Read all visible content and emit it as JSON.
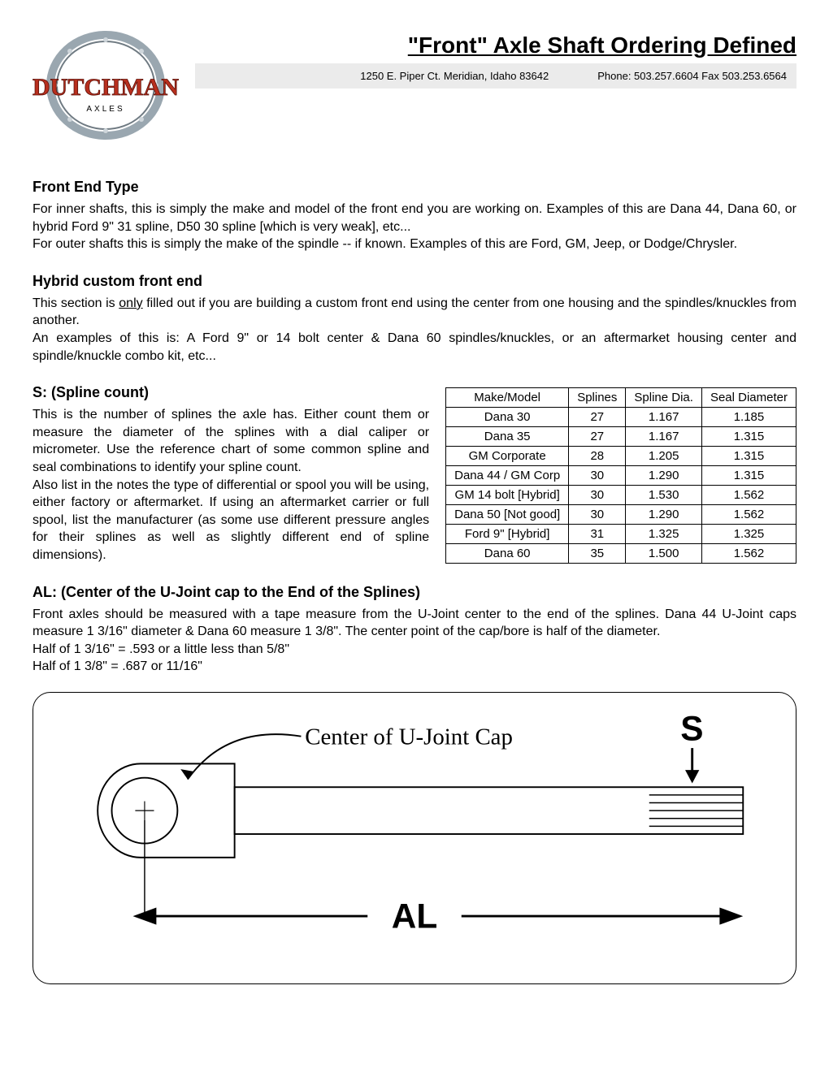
{
  "header": {
    "title": "\"Front\" Axle Shaft Ordering Defined",
    "address": "1250 E. Piper Ct.  Meridian, Idaho  83642",
    "contact": "Phone: 503.257.6604    Fax 503.253.6564",
    "logo": {
      "brand_top": "DUTCHMAN",
      "brand_sub": "AXLES",
      "ring_color": "#9aa7b0",
      "text_color": "#b82f1e"
    }
  },
  "sections": {
    "frontEnd": {
      "heading": "Front End Type",
      "p1": "For inner shafts, this is simply the make and model of the front end you are working on. Examples of this are Dana 44, Dana 60, or hybrid Ford 9\" 31 spline, D50 30 spline [which is very weak], etc...",
      "p2": "For outer shafts this is simply the make of the spindle -- if known. Examples of this are Ford, GM, Jeep, or Dodge/Chrysler."
    },
    "hybrid": {
      "heading": "Hybrid custom front end",
      "p1a": "This section is ",
      "p1u": "only",
      "p1b": " filled out if you are building a custom front end using the center from one housing and the spindles/knuckles from another.",
      "p2": "An examples of this is: A Ford 9\" or 14 bolt center & Dana 60 spindles/knuckles, or an aftermarket housing center and spindle/knuckle combo kit, etc..."
    },
    "spline": {
      "heading": "S:  (Spline count)",
      "p1": "This is the number of splines the axle has. Either count them or measure the diameter of the splines with a dial caliper or micrometer. Use the reference chart of some common spline and seal combinations to identify your spline count.",
      "p2": "Also list in the notes the type of differential or spool you will be using, either factory or aftermarket. If using an aftermarket carrier or full spool, list the manufacturer (as some use different pressure angles for their splines as well as slightly different end of spline dimensions)."
    },
    "al": {
      "heading": "AL:  (Center of the U-Joint cap to the End of the Splines)",
      "p1": "Front axles should be measured with a tape measure from the U-Joint center to the end of the splines. Dana 44 U-Joint caps measure 1 3/16\" diameter & Dana 60 measure 1 3/8\". The center point of the cap/bore is half of the diameter.",
      "p2": "Half of 1 3/16\" = .593 or a little less than 5/8\"",
      "p3": "Half of 1 3/8\" = .687 or 11/16\""
    }
  },
  "table": {
    "columns": [
      "Make/Model",
      "Splines",
      "Spline Dia.",
      "Seal Diameter"
    ],
    "rows": [
      [
        "Dana 30",
        "27",
        "1.167",
        "1.185"
      ],
      [
        "Dana 35",
        "27",
        "1.167",
        "1.315"
      ],
      [
        "GM Corporate",
        "28",
        "1.205",
        "1.315"
      ],
      [
        "Dana 44 / GM Corp",
        "30",
        "1.290",
        "1.315"
      ],
      [
        "GM 14 bolt [Hybrid]",
        "30",
        "1.530",
        "1.562"
      ],
      [
        "Dana 50 [Not good]",
        "30",
        "1.290",
        "1.562"
      ],
      [
        "Ford 9\" [Hybrid]",
        "31",
        "1.325",
        "1.325"
      ],
      [
        "Dana 60",
        "35",
        "1.500",
        "1.562"
      ]
    ],
    "border_color": "#000000",
    "font_size": 15
  },
  "diagram": {
    "label_center": "Center of U-Joint Cap",
    "label_s": "S",
    "label_al": "AL",
    "stroke": "#000000",
    "stroke_width": 2
  }
}
